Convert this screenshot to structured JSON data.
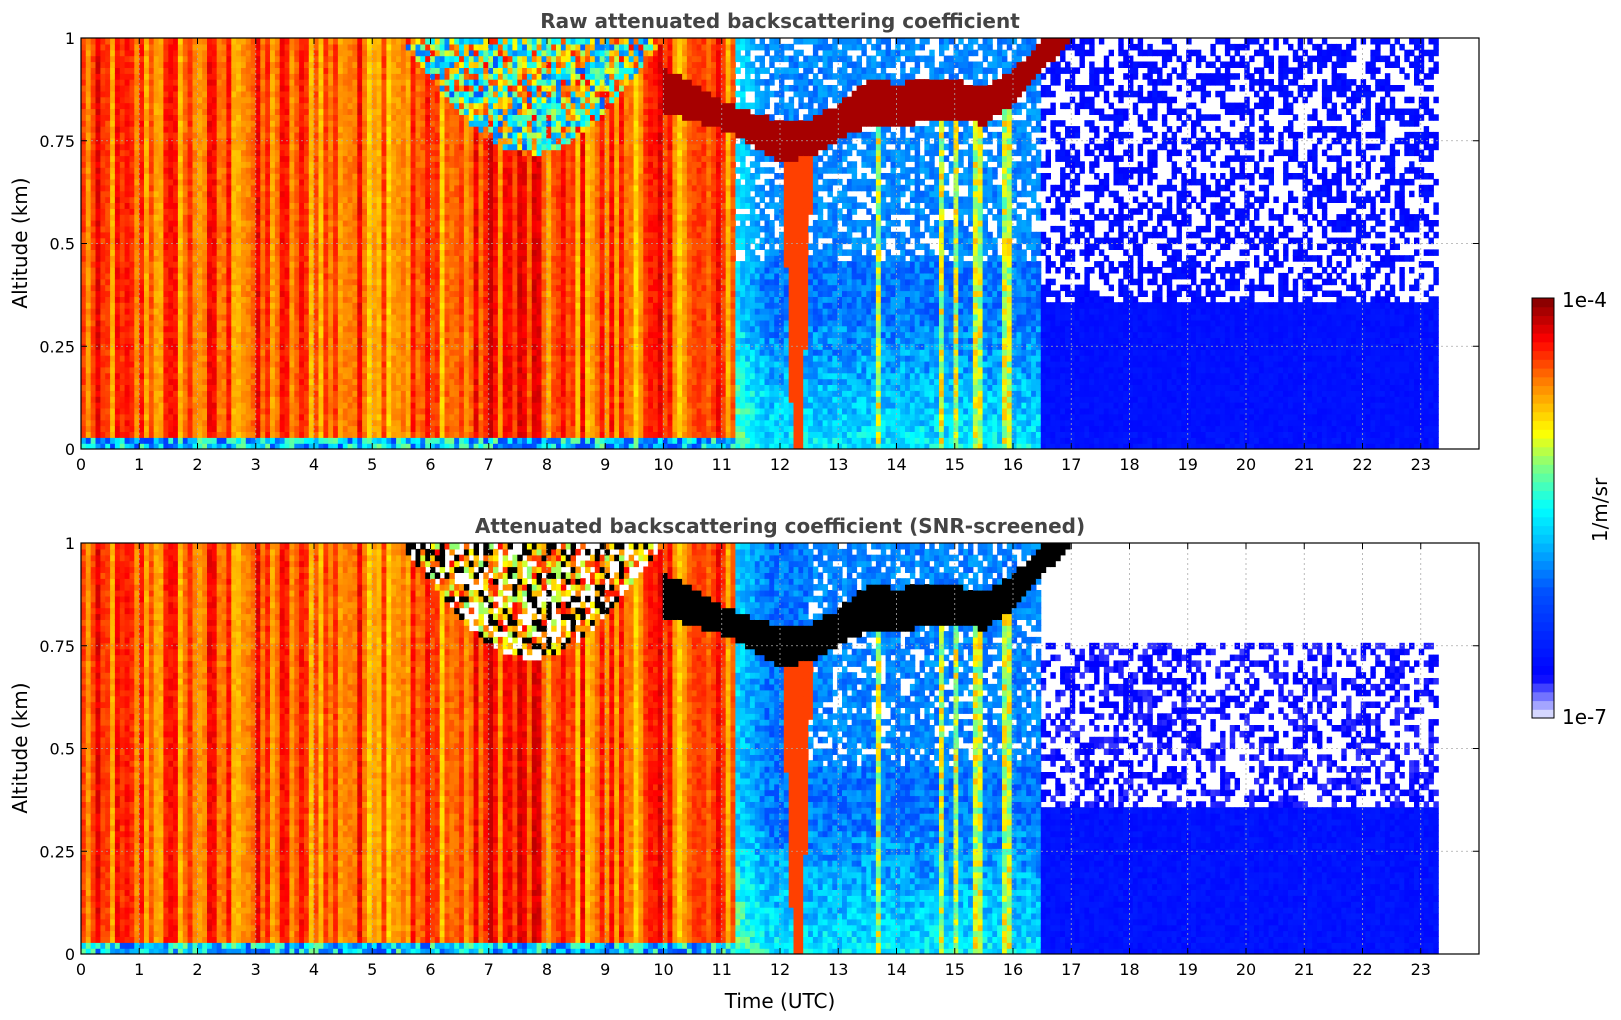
{
  "chart_data": [
    {
      "type": "heatmap",
      "title": "Raw attenuated backscattering coefficient",
      "xlabel": "",
      "ylabel": "Altitude (km)",
      "xlim": [
        0,
        24
      ],
      "ylim": [
        0,
        1
      ],
      "x_ticks": [
        "0",
        "1",
        "2",
        "3",
        "4",
        "5",
        "6",
        "7",
        "8",
        "9",
        "10",
        "11",
        "12",
        "13",
        "14",
        "15",
        "16",
        "17",
        "18",
        "19",
        "20",
        "21",
        "22",
        "23"
      ],
      "y_ticks": [
        "0",
        "0.25",
        "0.5",
        "0.75",
        "1"
      ],
      "grid": true,
      "data_end_time": 23.3,
      "cloud_layer": {
        "time": [
          10.0,
          10.5,
          11.0,
          11.5,
          12.0,
          12.5,
          13.0,
          13.5,
          14.0,
          14.5,
          15.0,
          15.5,
          16.0,
          16.5,
          17.0
        ],
        "base_altitude": [
          0.82,
          0.8,
          0.78,
          0.74,
          0.7,
          0.71,
          0.75,
          0.79,
          0.78,
          0.8,
          0.8,
          0.79,
          0.84,
          0.92,
          1.0
        ],
        "top_altitude": [
          0.93,
          0.89,
          0.85,
          0.82,
          0.8,
          0.8,
          0.84,
          0.9,
          0.89,
          0.9,
          0.9,
          0.88,
          0.92,
          1.0,
          1.0
        ]
      },
      "precipitation_streaks_time": [
        12.3,
        13.7,
        14.8,
        15.0,
        15.4,
        15.9
      ],
      "regimes": [
        {
          "from": 0,
          "to": 11.2,
          "level": "high (1e-5 to 1e-4)"
        },
        {
          "from": 11.2,
          "to": 16.5,
          "level": "low (~1e-6)"
        },
        {
          "from": 16.5,
          "to": 23.3,
          "level": "background (1e-7 to 1e-6)"
        }
      ]
    },
    {
      "type": "heatmap",
      "title": "Attenuated backscattering coefficient (SNR-screened)",
      "xlabel": "Time (UTC)",
      "ylabel": "Altitude (km)",
      "xlim": [
        0,
        24
      ],
      "ylim": [
        0,
        1
      ],
      "x_ticks": [
        "0",
        "1",
        "2",
        "3",
        "4",
        "5",
        "6",
        "7",
        "8",
        "9",
        "10",
        "11",
        "12",
        "13",
        "14",
        "15",
        "16",
        "17",
        "18",
        "19",
        "20",
        "21",
        "22",
        "23"
      ],
      "y_ticks": [
        "0",
        "0.25",
        "0.5",
        "0.75",
        "1"
      ],
      "grid": true,
      "data_end_time": 23.3,
      "screened_out": "white regions above ~0.35 km after 16.5 UTC",
      "saturated_cloud_color": "#000000"
    }
  ],
  "colorbar": {
    "label": "1/m/sr",
    "max_label": "1e-4",
    "min_label": "1e-7",
    "scale": "log",
    "colormap": [
      "#eef0ff",
      "#0000ff",
      "#00a0ff",
      "#00ffff",
      "#80ff80",
      "#ffff00",
      "#ff8000",
      "#ff0000",
      "#800000"
    ]
  }
}
